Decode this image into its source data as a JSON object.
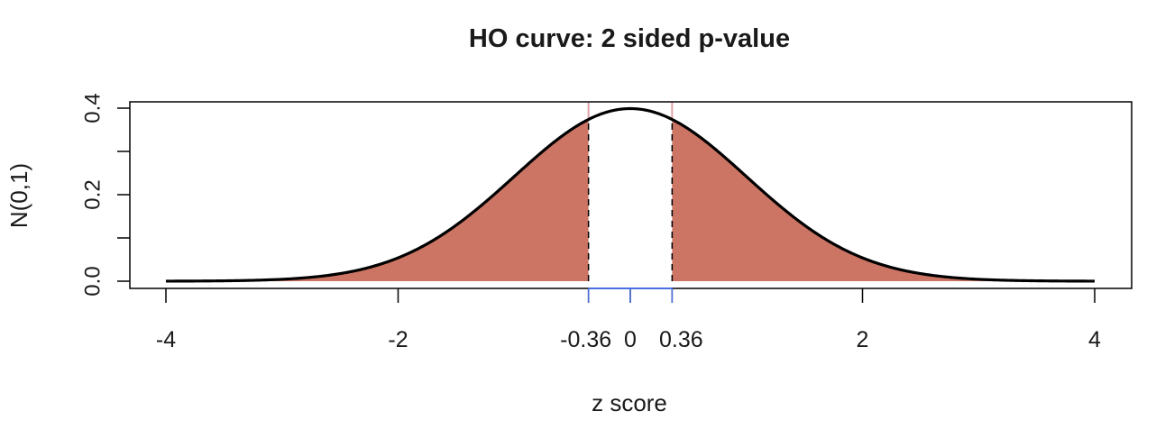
{
  "chart_data": {
    "type": "area",
    "title": "HO curve: 2 sided p-value",
    "xlabel": "z score",
    "ylabel": "N(0,1)",
    "xlim": [
      -4,
      4
    ],
    "ylim": [
      0,
      0.4
    ],
    "x_ticks": [
      {
        "value": -4,
        "label": "-4"
      },
      {
        "value": -2,
        "label": "-2"
      },
      {
        "value": -0.36,
        "label": "-0.36"
      },
      {
        "value": 0,
        "label": "0"
      },
      {
        "value": 0.36,
        "label": "0.36"
      },
      {
        "value": 2,
        "label": "2"
      },
      {
        "value": 4,
        "label": "4"
      }
    ],
    "y_ticks": [
      {
        "value": 0.0,
        "label": "0.0"
      },
      {
        "value": 0.1,
        "label": ""
      },
      {
        "value": 0.2,
        "label": "0.2"
      },
      {
        "value": 0.3,
        "label": ""
      },
      {
        "value": 0.4,
        "label": "0.4"
      }
    ],
    "curve": {
      "distribution": "standard normal",
      "mean": 0,
      "sd": 1,
      "color": "#000000"
    },
    "shaded_regions": [
      {
        "from": -4,
        "to": -0.36,
        "color": "#cc7565"
      },
      {
        "from": 0.36,
        "to": 4,
        "color": "#cc7565"
      }
    ],
    "critical_values": [
      -0.36,
      0.36
    ],
    "critical_line_colors": {
      "dashed": "#000000",
      "marker": "#e0a0a8",
      "axis_segment": "#4a6fe3"
    },
    "grid": false,
    "legend": "none"
  }
}
